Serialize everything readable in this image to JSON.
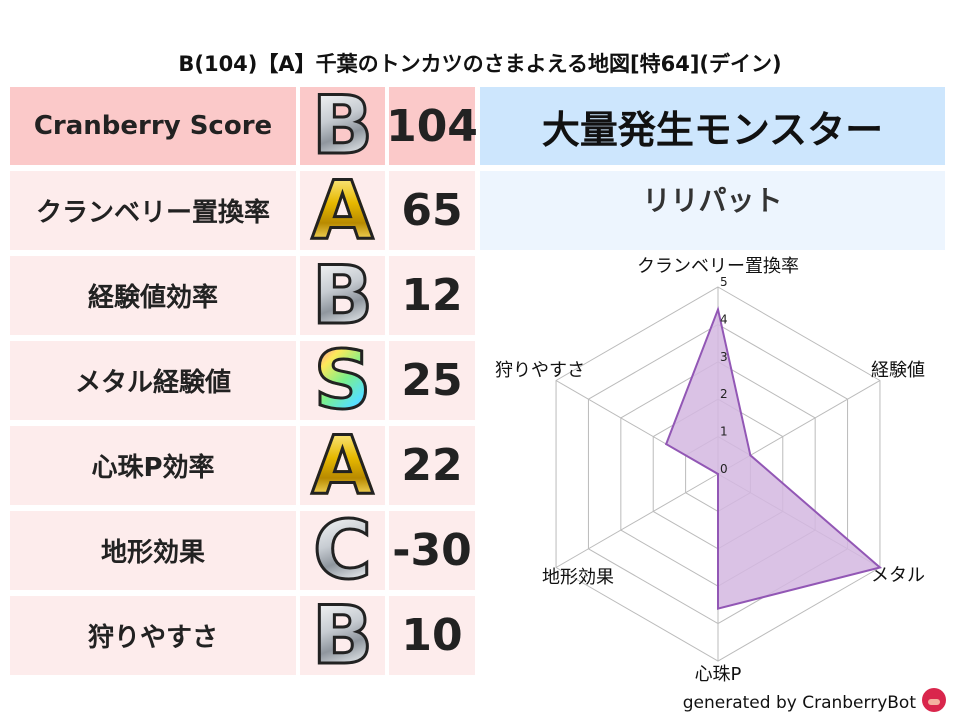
{
  "title": "B(104)【A】千葉のトンカツのさまよえる地図[特64](デイン)",
  "rows": [
    {
      "label": "Cranberry Score",
      "grade": "B",
      "score": "104"
    },
    {
      "label": "クランベリー置換率",
      "grade": "A",
      "score": "65"
    },
    {
      "label": "経験値効率",
      "grade": "B",
      "score": "12"
    },
    {
      "label": "メタル経験値",
      "grade": "S",
      "score": "25"
    },
    {
      "label": "心珠P効率",
      "grade": "A",
      "score": "22"
    },
    {
      "label": "地形効果",
      "grade": "C",
      "score": "-30"
    },
    {
      "label": "狩りやすさ",
      "grade": "B",
      "score": "10"
    }
  ],
  "monster": {
    "header": "大量発生モンスター",
    "name": "リリパット"
  },
  "footer": "generated by CranberryBot",
  "chart_data": {
    "type": "radar",
    "axes": [
      "クランベリー置換率",
      "経験値",
      "メタル",
      "心珠P",
      "地形効果",
      "狩りやすさ"
    ],
    "values": [
      4.4,
      1.0,
      5.0,
      3.6,
      0.0,
      1.6
    ],
    "range": [
      0,
      5
    ],
    "ticks": [
      "0",
      "1",
      "2",
      "3",
      "4",
      "5"
    ],
    "fill_color": "#d3b7e0",
    "line_color": "#9257b5",
    "grid": true
  }
}
